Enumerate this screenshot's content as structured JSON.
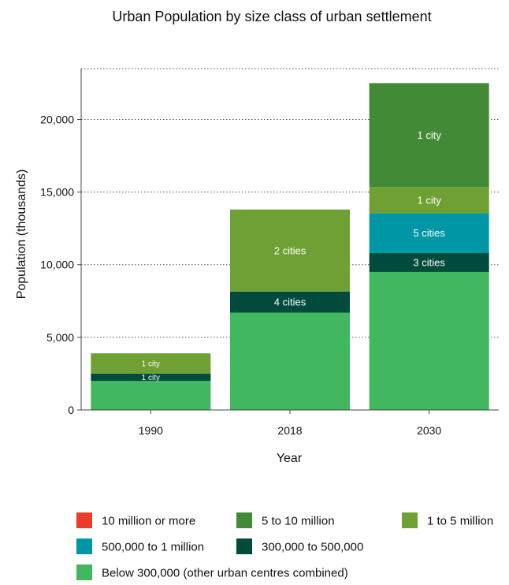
{
  "chart_data": {
    "type": "bar",
    "stacked": true,
    "title": "Urban Population by size class of urban settlement",
    "xlabel": "Year",
    "ylabel": "Population (thousands)",
    "ylim": [
      0,
      23500
    ],
    "yticks": [
      0,
      5000,
      10000,
      15000,
      20000
    ],
    "ytick_labels": [
      "0",
      "5,000",
      "10,000",
      "15,000",
      "20,000"
    ],
    "grid": "horizontal dotted",
    "legend_position": "bottom",
    "categories": [
      "1990",
      "2018",
      "2030"
    ],
    "series": [
      {
        "name": "Below 300,000 (other urban centres combined)",
        "color": "#41b75f",
        "values": [
          2000,
          6700,
          9500
        ],
        "labels": [
          "",
          "",
          ""
        ]
      },
      {
        "name": "300,000 to 500,000",
        "color": "#004b3c",
        "values": [
          500,
          1450,
          1300
        ],
        "labels": [
          "1 city",
          "4 cities",
          "3 cities"
        ]
      },
      {
        "name": "500,000 to 1 million",
        "color": "#0096a5",
        "values": [
          0,
          0,
          2750
        ],
        "labels": [
          "",
          "",
          "5 cities"
        ]
      },
      {
        "name": "1 to 5 million",
        "color": "#6ea033",
        "values": [
          1400,
          5650,
          1800
        ],
        "labels": [
          "1 city",
          "2 cities",
          "1 city"
        ]
      },
      {
        "name": "5 to 10 million",
        "color": "#428a35",
        "values": [
          0,
          0,
          7150
        ],
        "labels": [
          "",
          "",
          "1 city"
        ]
      },
      {
        "name": "10 million or more",
        "color": "#eb3b2b",
        "values": [
          0,
          0,
          0
        ],
        "labels": [
          "",
          "",
          ""
        ]
      }
    ],
    "legend_order": [
      "10 million or more",
      "5 to 10 million",
      "1 to 5 million",
      "500,000 to 1 million",
      "300,000 to 500,000",
      "Below 300,000 (other urban centres combined)"
    ]
  }
}
